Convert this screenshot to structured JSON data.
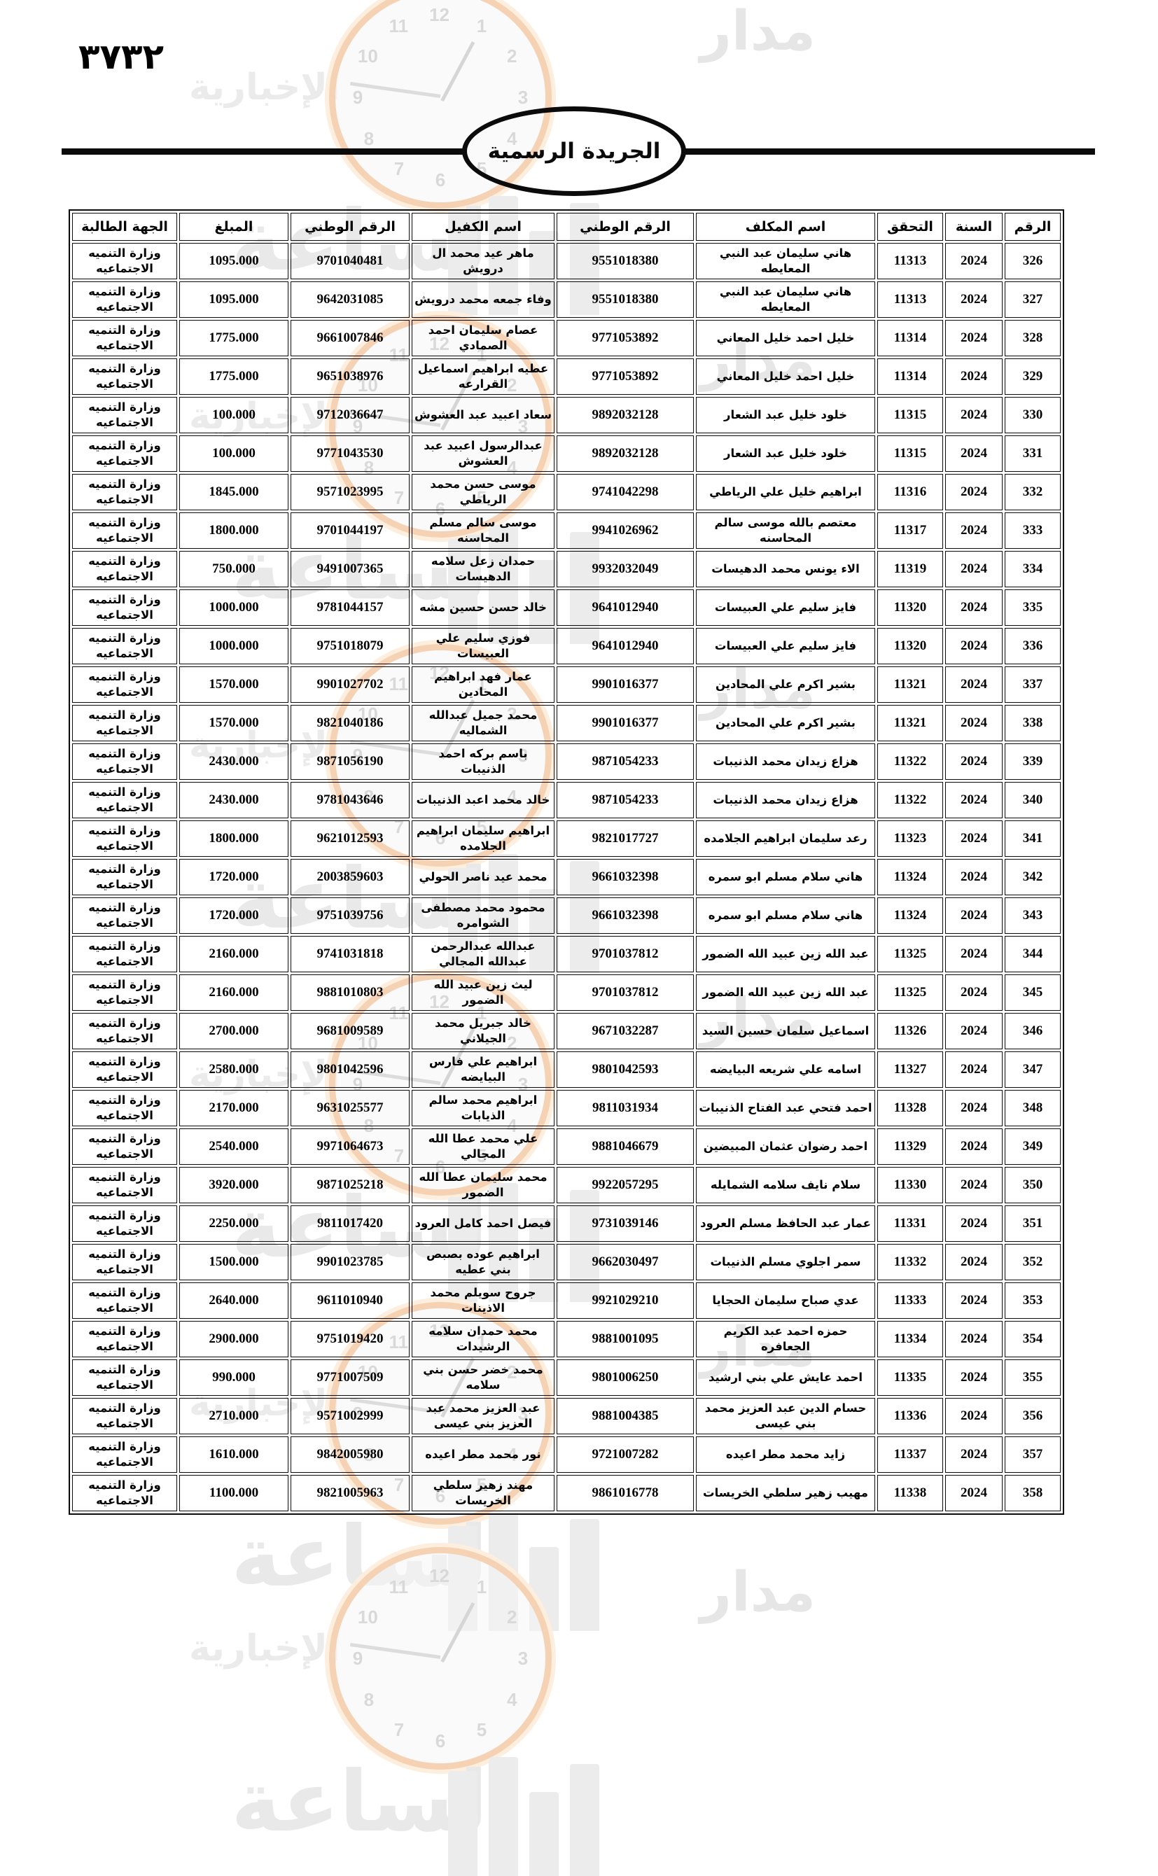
{
  "page": {
    "page_number": "٣٧٣٢",
    "title": "الجريدة الرسمية"
  },
  "watermark": {
    "brand_word_top": "مدار",
    "brand_word_big": "الساعة",
    "brand_word_side": "الإخبارية",
    "clock_numbers": [
      "12",
      "1",
      "2",
      "3",
      "4",
      "5",
      "6",
      "7",
      "8",
      "9",
      "10",
      "11"
    ]
  },
  "table": {
    "headers": [
      "الرقم",
      "السنة",
      "التحقق",
      "اسم المكلف",
      "الرقم الوطني",
      "اسم الكفيل",
      "الرقم الوطني",
      "المبلغ",
      "الجهة الطالبة"
    ],
    "rows": [
      {
        "serial": "326",
        "year": "2024",
        "check": "11313",
        "taxpayer": "هاني سليمان عبد النبي المعايطه",
        "taxpayer_id": "9551018380",
        "guarantor": "ماهر عيد محمد ال درويش",
        "guarantor_id": "9701040481",
        "amount": "1095.000",
        "authority": "وزارة التنميه الاجتماعيه"
      },
      {
        "serial": "327",
        "year": "2024",
        "check": "11313",
        "taxpayer": "هاني سليمان عبد النبي المعايطه",
        "taxpayer_id": "9551018380",
        "guarantor": "وفاء جمعه محمد درويش",
        "guarantor_id": "9642031085",
        "amount": "1095.000",
        "authority": "وزارة التنميه الاجتماعيه"
      },
      {
        "serial": "328",
        "year": "2024",
        "check": "11314",
        "taxpayer": "خليل احمد خليل المعاني",
        "taxpayer_id": "9771053892",
        "guarantor": "عصام سليمان احمد الصمادي",
        "guarantor_id": "9661007846",
        "amount": "1775.000",
        "authority": "وزارة التنميه الاجتماعيه"
      },
      {
        "serial": "329",
        "year": "2024",
        "check": "11314",
        "taxpayer": "خليل احمد خليل المعاني",
        "taxpayer_id": "9771053892",
        "guarantor": "عطيه ابراهيم اسماعيل القرارعه",
        "guarantor_id": "9651038976",
        "amount": "1775.000",
        "authority": "وزارة التنميه الاجتماعيه"
      },
      {
        "serial": "330",
        "year": "2024",
        "check": "11315",
        "taxpayer": "خلود خليل عبد الشعار",
        "taxpayer_id": "9892032128",
        "guarantor": "سعاد اعبيد عبد العشوش",
        "guarantor_id": "9712036647",
        "amount": "100.000",
        "authority": "وزارة التنميه الاجتماعيه"
      },
      {
        "serial": "331",
        "year": "2024",
        "check": "11315",
        "taxpayer": "خلود خليل عبد الشعار",
        "taxpayer_id": "9892032128",
        "guarantor": "عبدالرسول اعبيد عبد العشوش",
        "guarantor_id": "9771043530",
        "amount": "100.000",
        "authority": "وزارة التنميه الاجتماعيه"
      },
      {
        "serial": "332",
        "year": "2024",
        "check": "11316",
        "taxpayer": "ابراهيم خليل علي الرياطي",
        "taxpayer_id": "9741042298",
        "guarantor": "موسى حسن محمد الرياطي",
        "guarantor_id": "9571023995",
        "amount": "1845.000",
        "authority": "وزارة التنميه الاجتماعيه"
      },
      {
        "serial": "333",
        "year": "2024",
        "check": "11317",
        "taxpayer": "معتصم بالله موسى سالم المحاسنه",
        "taxpayer_id": "9941026962",
        "guarantor": "موسى سالم مسلم المحاسنه",
        "guarantor_id": "9701044197",
        "amount": "1800.000",
        "authority": "وزارة التنميه الاجتماعيه"
      },
      {
        "serial": "334",
        "year": "2024",
        "check": "11319",
        "taxpayer": "الاء يونس محمد الدهيسات",
        "taxpayer_id": "9932032049",
        "guarantor": "حمدان زعل سلامه الدهيسات",
        "guarantor_id": "9491007365",
        "amount": "750.000",
        "authority": "وزارة التنميه الاجتماعيه"
      },
      {
        "serial": "335",
        "year": "2024",
        "check": "11320",
        "taxpayer": "فايز سليم علي العبيسات",
        "taxpayer_id": "9641012940",
        "guarantor": "خالد حسن حسين مشه",
        "guarantor_id": "9781044157",
        "amount": "1000.000",
        "authority": "وزارة التنميه الاجتماعيه"
      },
      {
        "serial": "336",
        "year": "2024",
        "check": "11320",
        "taxpayer": "فايز سليم علي العبيسات",
        "taxpayer_id": "9641012940",
        "guarantor": "فوزي سليم علي العبيسات",
        "guarantor_id": "9751018079",
        "amount": "1000.000",
        "authority": "وزارة التنميه الاجتماعيه"
      },
      {
        "serial": "337",
        "year": "2024",
        "check": "11321",
        "taxpayer": "بشير اكرم علي المحادين",
        "taxpayer_id": "9901016377",
        "guarantor": "عمار فهد ابراهيم المحادين",
        "guarantor_id": "9901027702",
        "amount": "1570.000",
        "authority": "وزارة التنميه الاجتماعيه"
      },
      {
        "serial": "338",
        "year": "2024",
        "check": "11321",
        "taxpayer": "بشير اكرم علي المحادين",
        "taxpayer_id": "9901016377",
        "guarantor": "محمد جميل عبدالله الشماليه",
        "guarantor_id": "9821040186",
        "amount": "1570.000",
        "authority": "وزارة التنميه الاجتماعيه"
      },
      {
        "serial": "339",
        "year": "2024",
        "check": "11322",
        "taxpayer": "هزاع زيدان محمد الذنيبات",
        "taxpayer_id": "9871054233",
        "guarantor": "باسم بركه احمد الذنيبات",
        "guarantor_id": "9871056190",
        "amount": "2430.000",
        "authority": "وزارة التنميه الاجتماعيه"
      },
      {
        "serial": "340",
        "year": "2024",
        "check": "11322",
        "taxpayer": "هزاع زيدان محمد الذنيبات",
        "taxpayer_id": "9871054233",
        "guarantor": "خالد محمد اعبد الذنيبات",
        "guarantor_id": "9781043646",
        "amount": "2430.000",
        "authority": "وزارة التنميه الاجتماعيه"
      },
      {
        "serial": "341",
        "year": "2024",
        "check": "11323",
        "taxpayer": "رعد سليمان ابراهيم الجلامده",
        "taxpayer_id": "9821017727",
        "guarantor": "ابراهيم سليمان ابراهيم الجلامده",
        "guarantor_id": "9621012593",
        "amount": "1800.000",
        "authority": "وزارة التنميه الاجتماعيه"
      },
      {
        "serial": "342",
        "year": "2024",
        "check": "11324",
        "taxpayer": "هاني سلام مسلم ابو سمره",
        "taxpayer_id": "9661032398",
        "guarantor": "محمد عيد ناصر الحولي",
        "guarantor_id": "2003859603",
        "amount": "1720.000",
        "authority": "وزارة التنميه الاجتماعيه"
      },
      {
        "serial": "343",
        "year": "2024",
        "check": "11324",
        "taxpayer": "هاني سلام مسلم ابو سمره",
        "taxpayer_id": "9661032398",
        "guarantor": "محمود محمد مصطفى الشوامره",
        "guarantor_id": "9751039756",
        "amount": "1720.000",
        "authority": "وزارة التنميه الاجتماعيه"
      },
      {
        "serial": "344",
        "year": "2024",
        "check": "11325",
        "taxpayer": "عبد الله زين عبيد الله الضمور",
        "taxpayer_id": "9701037812",
        "guarantor": "عبدالله عبدالرحمن عبدالله المجالي",
        "guarantor_id": "9741031818",
        "amount": "2160.000",
        "authority": "وزارة التنميه الاجتماعيه"
      },
      {
        "serial": "345",
        "year": "2024",
        "check": "11325",
        "taxpayer": "عبد الله زين عبيد الله الضمور",
        "taxpayer_id": "9701037812",
        "guarantor": "ليث زين عبيد الله الضمور",
        "guarantor_id": "9881010803",
        "amount": "2160.000",
        "authority": "وزارة التنميه الاجتماعيه"
      },
      {
        "serial": "346",
        "year": "2024",
        "check": "11326",
        "taxpayer": "اسماعيل سلمان حسين السيد",
        "taxpayer_id": "9671032287",
        "guarantor": "خالد جبريل محمد الجيلاني",
        "guarantor_id": "9681009589",
        "amount": "2700.000",
        "authority": "وزارة التنميه الاجتماعيه"
      },
      {
        "serial": "347",
        "year": "2024",
        "check": "11327",
        "taxpayer": "اسامه علي شريعه البيايضه",
        "taxpayer_id": "9801042593",
        "guarantor": "ابراهيم علي فارس البيايضه",
        "guarantor_id": "9801042596",
        "amount": "2580.000",
        "authority": "وزارة التنميه الاجتماعيه"
      },
      {
        "serial": "348",
        "year": "2024",
        "check": "11328",
        "taxpayer": "احمد فتحي عبد الفتاح الذنيبات",
        "taxpayer_id": "9811031934",
        "guarantor": "ابراهيم محمد سالم الذيابات",
        "guarantor_id": "9631025577",
        "amount": "2170.000",
        "authority": "وزارة التنميه الاجتماعيه"
      },
      {
        "serial": "349",
        "year": "2024",
        "check": "11329",
        "taxpayer": "احمد رضوان عثمان المبيضين",
        "taxpayer_id": "9881046679",
        "guarantor": "علي محمد عطا الله المجالي",
        "guarantor_id": "9971064673",
        "amount": "2540.000",
        "authority": "وزارة التنميه الاجتماعيه"
      },
      {
        "serial": "350",
        "year": "2024",
        "check": "11330",
        "taxpayer": "سلام نايف سلامه الشمايله",
        "taxpayer_id": "9922057295",
        "guarantor": "محمد سليمان عطا الله الضمور",
        "guarantor_id": "9871025218",
        "amount": "3920.000",
        "authority": "وزارة التنميه الاجتماعيه"
      },
      {
        "serial": "351",
        "year": "2024",
        "check": "11331",
        "taxpayer": "عمار عبد الحافظ مسلم العرود",
        "taxpayer_id": "9731039146",
        "guarantor": "فيصل احمد كامل العرود",
        "guarantor_id": "9811017420",
        "amount": "2250.000",
        "authority": "وزارة التنميه الاجتماعيه"
      },
      {
        "serial": "352",
        "year": "2024",
        "check": "11332",
        "taxpayer": "سمر اجلوي مسلم الذنيبات",
        "taxpayer_id": "9662030497",
        "guarantor": "ابراهيم عوده بصبص بني عطيه",
        "guarantor_id": "9901023785",
        "amount": "1500.000",
        "authority": "وزارة التنميه الاجتماعيه"
      },
      {
        "serial": "353",
        "year": "2024",
        "check": "11333",
        "taxpayer": "عدي صباح سليمان الحجايا",
        "taxpayer_id": "9921029210",
        "guarantor": "جروح سويلم محمد الاذينات",
        "guarantor_id": "9611010940",
        "amount": "2640.000",
        "authority": "وزارة التنميه الاجتماعيه"
      },
      {
        "serial": "354",
        "year": "2024",
        "check": "11334",
        "taxpayer": "حمزه احمد عبد الكريم الجعافره",
        "taxpayer_id": "9881001095",
        "guarantor": "محمد حمدان سلامه الرشيدات",
        "guarantor_id": "9751019420",
        "amount": "2900.000",
        "authority": "وزارة التنميه الاجتماعيه"
      },
      {
        "serial": "355",
        "year": "2024",
        "check": "11335",
        "taxpayer": "احمد عايش علي بني ارشيد",
        "taxpayer_id": "9801006250",
        "guarantor": "محمد خضر حسن بني سلامه",
        "guarantor_id": "9771007509",
        "amount": "990.000",
        "authority": "وزارة التنميه الاجتماعيه"
      },
      {
        "serial": "356",
        "year": "2024",
        "check": "11336",
        "taxpayer": "حسام الدين عبد العزيز محمد بني عيسى",
        "taxpayer_id": "9881004385",
        "guarantor": "عبد العزيز محمد عبد العزيز بني عيسى",
        "guarantor_id": "9571002999",
        "amount": "2710.000",
        "authority": "وزارة التنميه الاجتماعيه"
      },
      {
        "serial": "357",
        "year": "2024",
        "check": "11337",
        "taxpayer": "زايد محمد مطر اعيده",
        "taxpayer_id": "9721007282",
        "guarantor": "نور محمد مطر اعيده",
        "guarantor_id": "9842005980",
        "amount": "1610.000",
        "authority": "وزارة التنميه الاجتماعيه"
      },
      {
        "serial": "358",
        "year": "2024",
        "check": "11338",
        "taxpayer": "مهيب زهير سلطي الخريسات",
        "taxpayer_id": "9861016778",
        "guarantor": "مهند زهير سلطي الخريسات",
        "guarantor_id": "9821005963",
        "amount": "1100.000",
        "authority": "وزارة التنميه الاجتماعيه"
      }
    ]
  }
}
